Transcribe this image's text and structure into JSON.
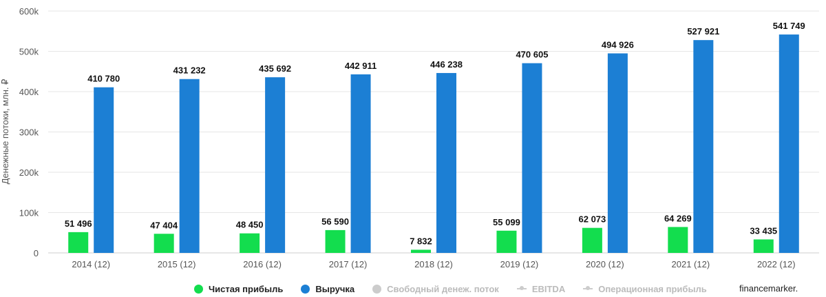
{
  "chart_data": {
    "type": "bar",
    "ylabel": "Денежные потоки, млн. ₽",
    "ylim": [
      0,
      600000
    ],
    "yticks": [
      "0",
      "100k",
      "200k",
      "300k",
      "400k",
      "500k",
      "600k"
    ],
    "ytick_values": [
      0,
      100000,
      200000,
      300000,
      400000,
      500000,
      600000
    ],
    "grid": true,
    "legend_position": "bottom",
    "categories": [
      "2014 (12)",
      "2015 (12)",
      "2016 (12)",
      "2017 (12)",
      "2018 (12)",
      "2019 (12)",
      "2020 (12)",
      "2021 (12)",
      "2022 (12)"
    ],
    "series": [
      {
        "name": "Чистая прибыль",
        "color": "#13DD4E",
        "visible": true,
        "values": [
          51496,
          47404,
          48450,
          56590,
          7832,
          55099,
          62073,
          64269,
          33435
        ],
        "labels": [
          "51 496",
          "47 404",
          "48 450",
          "56 590",
          "7 832",
          "55 099",
          "62 073",
          "64 269",
          "33 435"
        ]
      },
      {
        "name": "Выручка",
        "color": "#1C7FD4",
        "visible": true,
        "values": [
          410780,
          431232,
          435692,
          442911,
          446238,
          470605,
          494926,
          527921,
          541749
        ],
        "labels": [
          "410 780",
          "431 232",
          "435 692",
          "442 911",
          "446 238",
          "470 605",
          "494 926",
          "527 921",
          "541 749"
        ]
      }
    ]
  },
  "legend": [
    {
      "label": "Чистая прибыль",
      "color": "#13DD4E",
      "marker": "dot",
      "active": true,
      "icon": "green-dot-icon"
    },
    {
      "label": "Выручка",
      "color": "#1C7FD4",
      "marker": "dot",
      "active": true,
      "icon": "blue-dot-icon"
    },
    {
      "label": "Свободный денеж. поток",
      "color": "#cccccc",
      "marker": "dot",
      "active": false,
      "icon": "gray-dot-icon"
    },
    {
      "label": "EBITDA",
      "color": "#cccccc",
      "marker": "line",
      "active": false,
      "icon": "line-marker-icon"
    },
    {
      "label": "Операционная прибыль",
      "color": "#cccccc",
      "marker": "line",
      "active": false,
      "icon": "line-marker-icon"
    }
  ],
  "credit": "financemarker."
}
